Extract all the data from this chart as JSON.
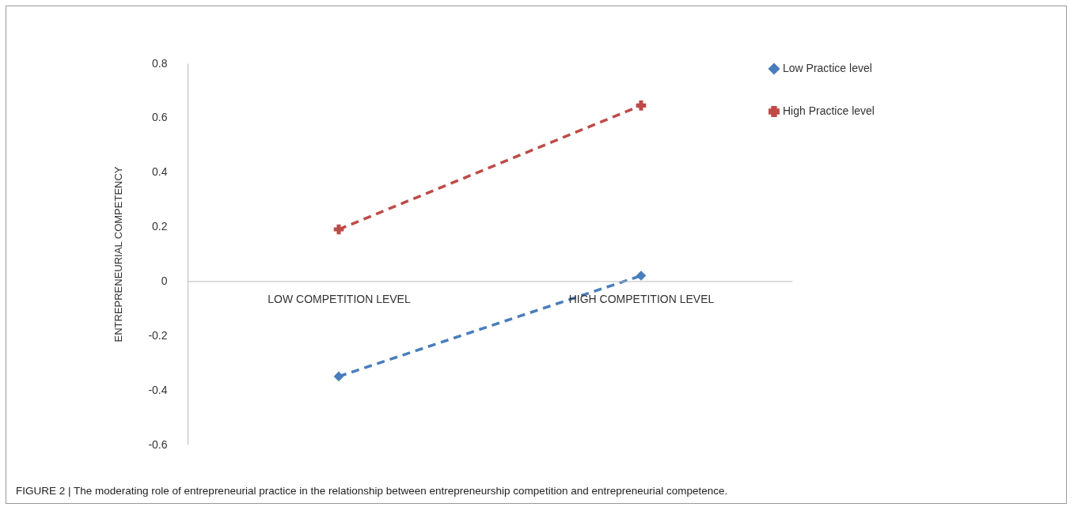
{
  "chart_data": {
    "type": "line",
    "ylabel": "ENTREPRENEURIAL COMPETENCY",
    "categories": [
      "LOW COMPETITION LEVEL",
      "HIGH COMPETITION LEVEL"
    ],
    "series": [
      {
        "name": "Low Practice level",
        "color": "#4a7ebb",
        "values": [
          -0.35,
          0.02
        ],
        "marker": "diamond"
      },
      {
        "name": "High Practice level",
        "color": "#be4b48",
        "values": [
          0.19,
          0.645
        ],
        "marker": "cross"
      }
    ],
    "ylim": [
      -0.6,
      0.8
    ],
    "yticks": [
      -0.6,
      -0.4,
      -0.2,
      0,
      0.2,
      0.4,
      0.6,
      0.8
    ],
    "grid": false,
    "legend": "right",
    "line_style": "dashed",
    "annotations": [
      "FIGURE 2 | The moderating role of entrepreneurial practice in the relationship between entrepreneurship competition and entrepreneurial competence."
    ]
  }
}
